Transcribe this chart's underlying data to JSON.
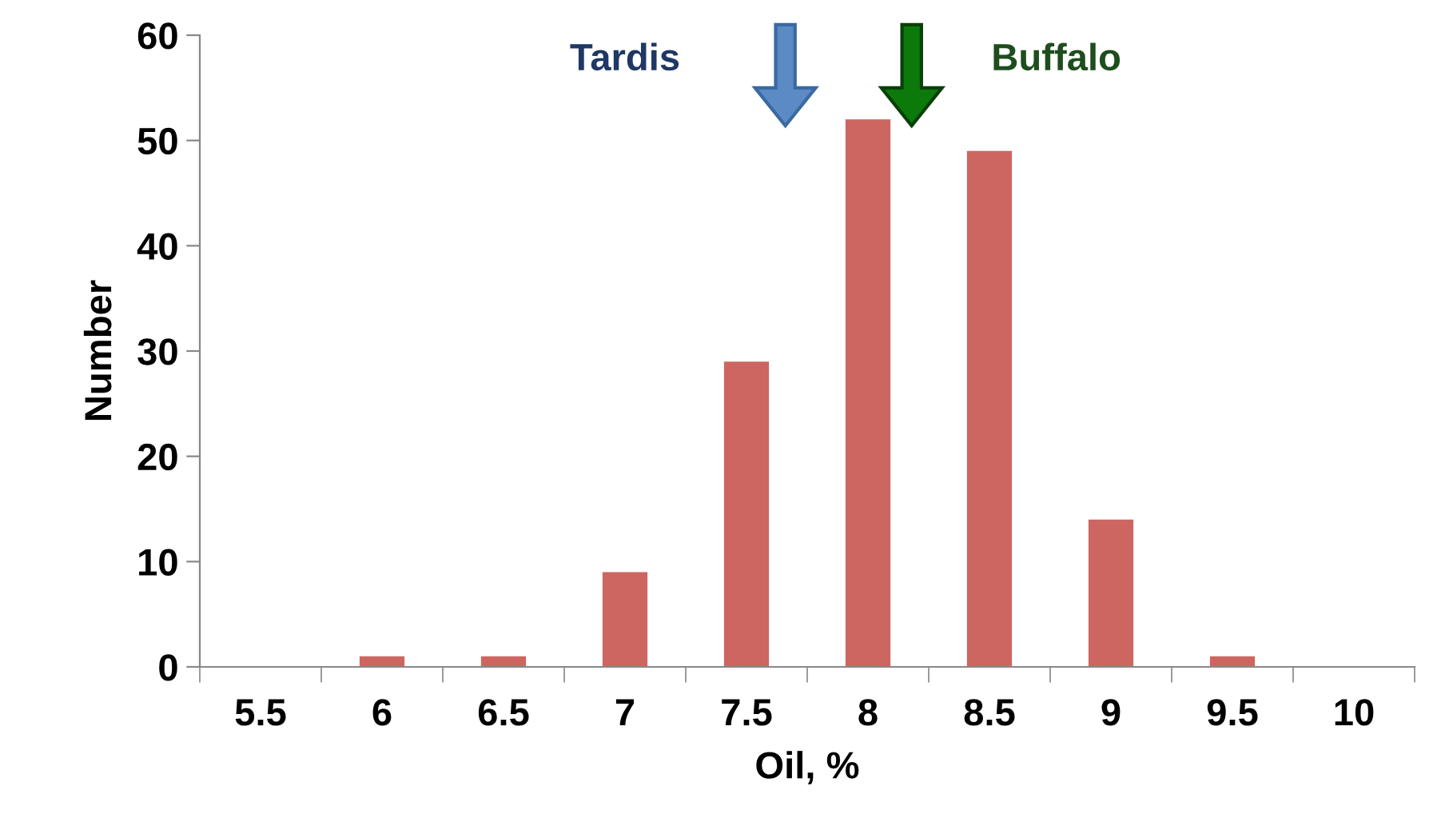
{
  "chart_data": {
    "type": "bar",
    "categories": [
      "5.5",
      "6",
      "6.5",
      "7",
      "7.5",
      "8",
      "8.5",
      "9",
      "9.5",
      "10"
    ],
    "values": [
      0,
      1,
      1,
      9,
      29,
      52,
      49,
      14,
      1,
      0
    ],
    "color": "#cd6660",
    "xlabel": "Oil, %",
    "ylabel": "Number",
    "ylim": [
      0,
      60
    ],
    "yticks": [
      0,
      10,
      20,
      30,
      40,
      50,
      60
    ],
    "annotations": [
      "Tardis",
      "Buffalo"
    ],
    "grid": false
  }
}
